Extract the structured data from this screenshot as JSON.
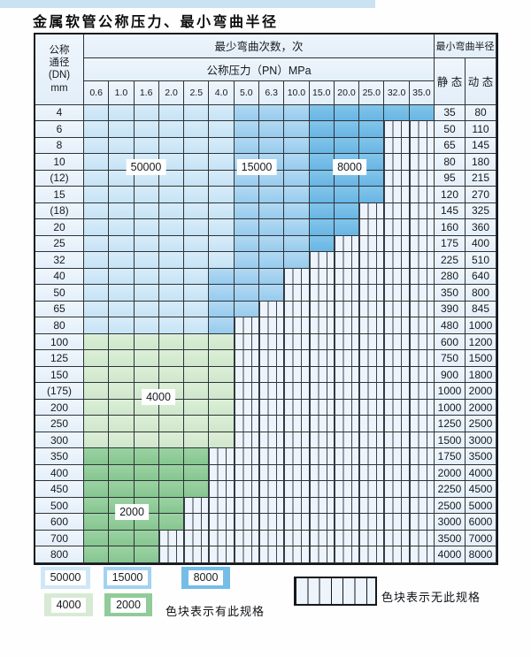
{
  "page": {
    "title": "金属软管公称压力、最小弯曲半径"
  },
  "table": {
    "dn_header_lines": [
      "公称",
      "通径",
      "(DN)",
      "mm"
    ],
    "cycles_header": "最少弯曲次数，次",
    "pressure_header": "公称压力（PN）MPa",
    "radius_header": "最小弯曲半径",
    "static_header": "静 态",
    "dynamic_header": "动 态",
    "pressure_columns": [
      "0.6",
      "1.0",
      "1.6",
      "2.0",
      "2.5",
      "4.0",
      "5.0",
      "6.3",
      "10.0",
      "15.0",
      "20.0",
      "25.0",
      "32.0",
      "35.0"
    ],
    "cell_codes": {
      "L": "50000",
      "M": "15000",
      "D": "8000",
      "G": "4000",
      "E": "2000",
      "X": "no-spec"
    },
    "region_labels": [
      "50000",
      "15000",
      "8000",
      "4000",
      "2000"
    ],
    "rows": [
      {
        "dn": "4",
        "cells": "LLLLLLMMMDDDDD",
        "static": "35",
        "dynamic": "80"
      },
      {
        "dn": "6",
        "cells": "LLLLLLMMMDDDXX",
        "static": "50",
        "dynamic": "110"
      },
      {
        "dn": "8",
        "cells": "LLLLLLMMMDDDXX",
        "static": "65",
        "dynamic": "145"
      },
      {
        "dn": "10",
        "cells": "LLLLLLMMMDDDXX",
        "static": "80",
        "dynamic": "180"
      },
      {
        "dn": "(12)",
        "cells": "LLLLLLMMMDDDXX",
        "static": "95",
        "dynamic": "215"
      },
      {
        "dn": "15",
        "cells": "LLLLLLMMMDDDXX",
        "static": "120",
        "dynamic": "270"
      },
      {
        "dn": "(18)",
        "cells": "LLLLLLMMMDDXXX",
        "static": "145",
        "dynamic": "325"
      },
      {
        "dn": "20",
        "cells": "LLLLLLMMMDDXXX",
        "static": "160",
        "dynamic": "360"
      },
      {
        "dn": "25",
        "cells": "LLLLLLMMMDXXXX",
        "static": "175",
        "dynamic": "400"
      },
      {
        "dn": "32",
        "cells": "LLLLLLMMMXXXXX",
        "static": "225",
        "dynamic": "510"
      },
      {
        "dn": "40",
        "cells": "LLLLLMMMXXXXXX",
        "static": "280",
        "dynamic": "640"
      },
      {
        "dn": "50",
        "cells": "LLLLLMMMXXXXXX",
        "static": "350",
        "dynamic": "800"
      },
      {
        "dn": "65",
        "cells": "LLLLLMMXXXXXXX",
        "static": "390",
        "dynamic": "845"
      },
      {
        "dn": "80",
        "cells": "LLLLLMXXXXXXXX",
        "static": "480",
        "dynamic": "1000"
      },
      {
        "dn": "100",
        "cells": "GGGGGGXXXXXXXX",
        "static": "600",
        "dynamic": "1200"
      },
      {
        "dn": "125",
        "cells": "GGGGGGXXXXXXXX",
        "static": "750",
        "dynamic": "1500"
      },
      {
        "dn": "150",
        "cells": "GGGGGGXXXXXXXX",
        "static": "900",
        "dynamic": "1800"
      },
      {
        "dn": "(175)",
        "cells": "GGGGGGXXXXXXXX",
        "static": "1000",
        "dynamic": "2000"
      },
      {
        "dn": "200",
        "cells": "GGGGGGXXXXXXXX",
        "static": "1000",
        "dynamic": "2000"
      },
      {
        "dn": "250",
        "cells": "GGGGGGXXXXXXXX",
        "static": "1250",
        "dynamic": "2500"
      },
      {
        "dn": "300",
        "cells": "GGGGGGXXXXXXXX",
        "static": "1500",
        "dynamic": "3000"
      },
      {
        "dn": "350",
        "cells": "EEEEEXXXXXXXXX",
        "static": "1750",
        "dynamic": "3500"
      },
      {
        "dn": "400",
        "cells": "EEEEEXXXXXXXXX",
        "static": "2000",
        "dynamic": "4000"
      },
      {
        "dn": "450",
        "cells": "EEEEEXXXXXXXXX",
        "static": "2250",
        "dynamic": "4500"
      },
      {
        "dn": "500",
        "cells": "EEEEXXXXXXXXXX",
        "static": "2500",
        "dynamic": "5000"
      },
      {
        "dn": "600",
        "cells": "EEEEXXXXXXXXXX",
        "static": "3000",
        "dynamic": "6000"
      },
      {
        "dn": "700",
        "cells": "EEEXXXXXXXXXXX",
        "static": "3500",
        "dynamic": "7000"
      },
      {
        "dn": "800",
        "cells": "EEEXXXXXXXXXXX",
        "static": "4000",
        "dynamic": "8000"
      }
    ]
  },
  "legend": {
    "items": [
      {
        "label": "50000",
        "color": "#cfe7f7"
      },
      {
        "label": "15000",
        "color": "#a3d2f0"
      },
      {
        "label": "8000",
        "color": "#74bde7"
      },
      {
        "label": "4000",
        "color": "#d7ebd4"
      },
      {
        "label": "2000",
        "color": "#90cb99"
      }
    ],
    "exists_note": "色块表示有此规格",
    "absent_note": "色块表示无此规格"
  },
  "colors": {
    "top_band": "#cbe2f2",
    "grid_border": "#2e3338",
    "header_bg": "#e9f2fb",
    "hatch_bg": "#eef4fb",
    "hatch_line": "#3a424c"
  }
}
